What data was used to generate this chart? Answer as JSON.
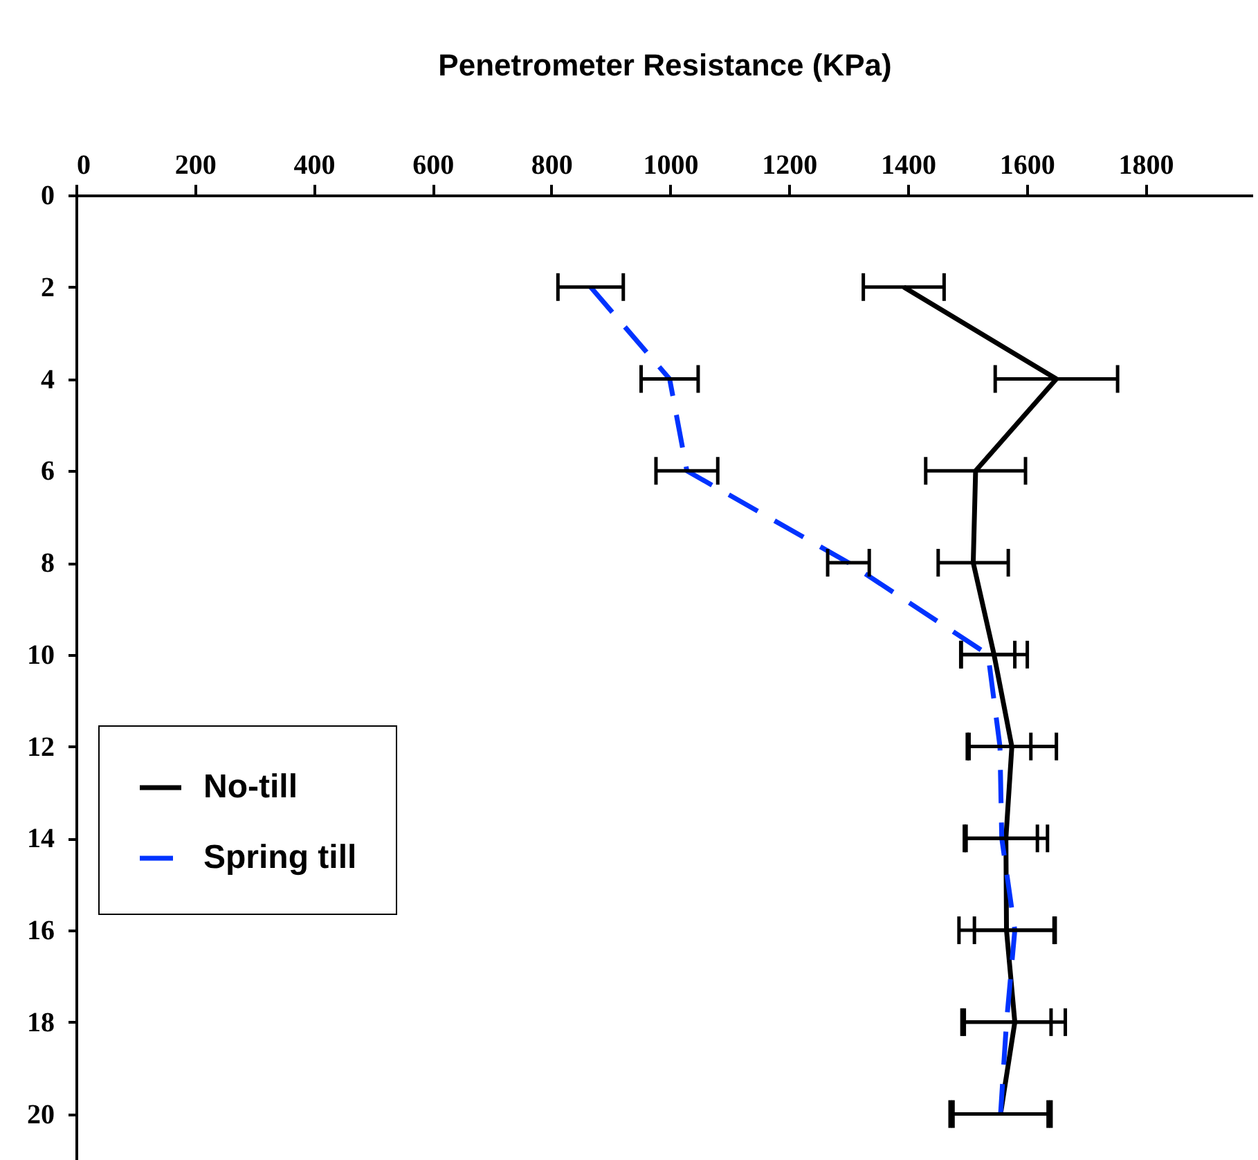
{
  "chart_data": {
    "type": "line",
    "orientation": "horizontal",
    "xlabel": "Penetrometer Resistance (KPa)",
    "x": [
      2,
      4,
      6,
      8,
      10,
      12,
      14,
      16,
      18,
      20
    ],
    "series": [
      {
        "name": "No-till",
        "color": "#000000",
        "line_style": "solid",
        "values": [
          1393,
          1650,
          1514,
          1510,
          1545,
          1575,
          1565,
          1566,
          1580,
          1556
        ],
        "errors": [
          68,
          103,
          84,
          59,
          56,
          75,
          70,
          80,
          85,
          85
        ]
      },
      {
        "name": "Spring till",
        "color": "#0033ff",
        "line_style": "dashed",
        "values": [
          866,
          999,
          1028,
          1300,
          1535,
          1555,
          1558,
          1580,
          1566,
          1556
        ],
        "errors": [
          55,
          48,
          52,
          35,
          45,
          52,
          60,
          68,
          75,
          80
        ]
      }
    ],
    "xlim": [
      0,
      1980
    ],
    "xticks": [
      0,
      200,
      400,
      600,
      800,
      1000,
      1200,
      1400,
      1600,
      1800
    ],
    "ylim": [
      21,
      0
    ],
    "yticks": [
      0,
      2,
      4,
      6,
      8,
      10,
      12,
      14,
      16,
      18,
      20
    ],
    "legend": "left",
    "grid": false,
    "marker": "none"
  }
}
